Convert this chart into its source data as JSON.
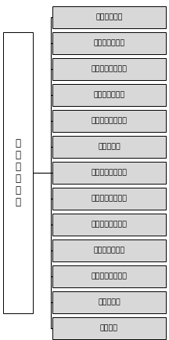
{
  "title": "数\n据\n控\n制\n装\n置",
  "nodes": [
    "铸造生产装置",
    "条形码分发装置",
    "条形码扫描装置一",
    "质量检验装置一",
    "条形码扫描装置二",
    "分拣装置一",
    "条形码扫描装置三",
    "铸造自动打号装置",
    "条形码扫描装置四",
    "质量检验装置二",
    "条形码扫描装置五",
    "分拣装置二",
    "打包装置"
  ],
  "bg_color": "#ffffff",
  "box_facecolor": "#d8d8d8",
  "box_edgecolor": "#000000",
  "text_color": "#000000",
  "left_box_facecolor": "#ffffff",
  "line_color": "#000000",
  "fig_w": 2.16,
  "fig_h": 4.33,
  "dpi": 100
}
